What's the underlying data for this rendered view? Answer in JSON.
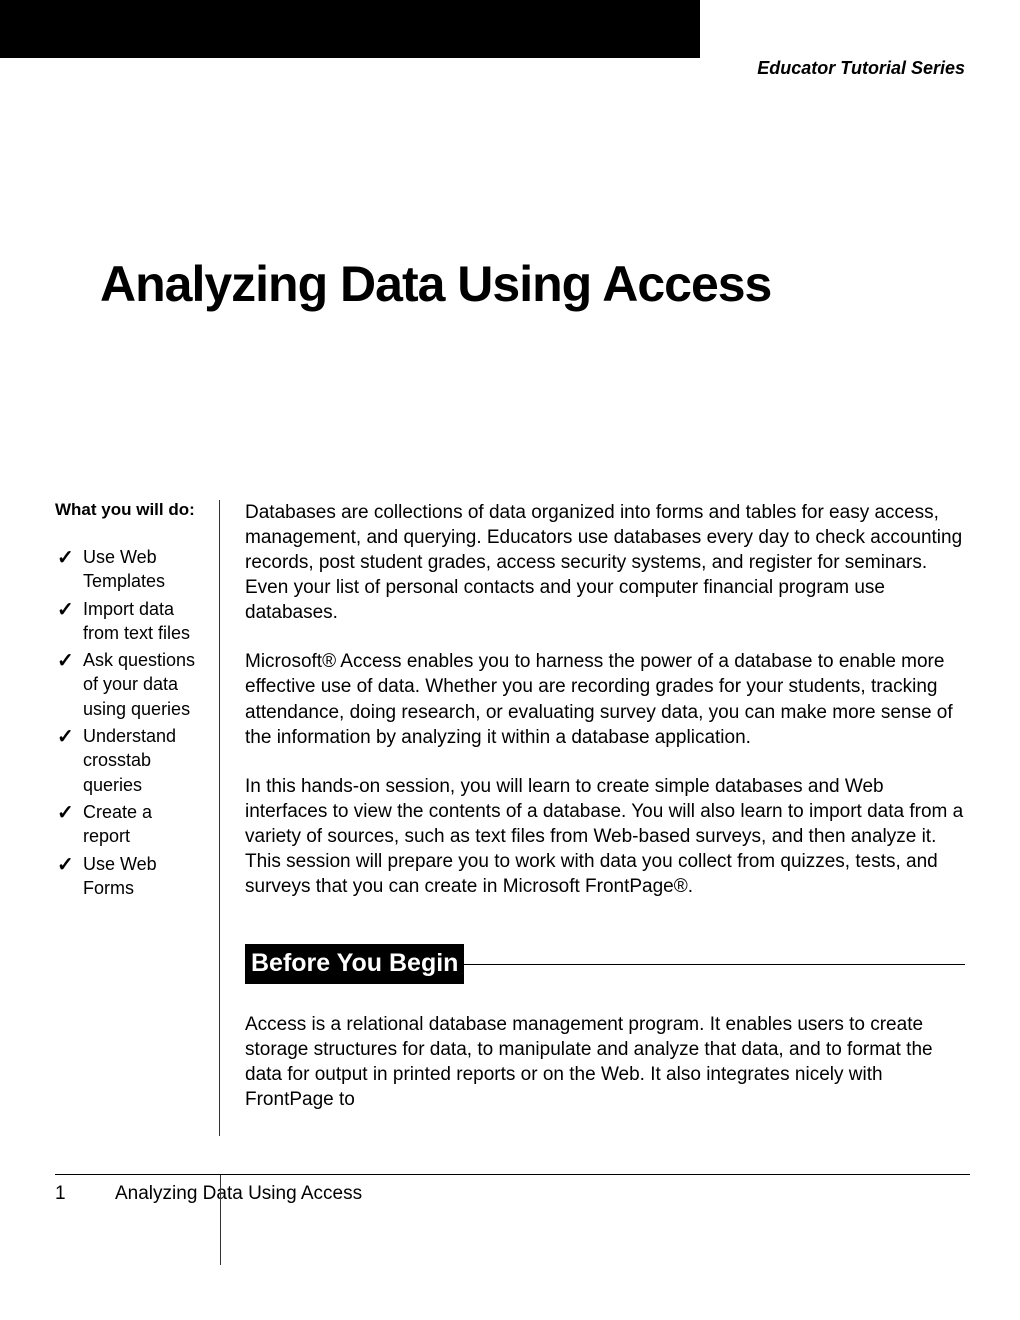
{
  "header": {
    "series_label": "Educator Tutorial Series"
  },
  "title": "Analyzing Data Using Access",
  "sidebar": {
    "heading": "What you will do:",
    "items": [
      "Use Web Templates",
      "Import data from text files",
      "Ask questions of your data using queries",
      "Understand crosstab queries",
      "Create a report",
      "Use Web Forms"
    ]
  },
  "body": {
    "para1": "Databases are collections of data organized into forms and tables for easy access, management, and querying. Educators use databases every day to check accounting records, post student grades, access security systems, and register for seminars. Even your list of personal contacts and your computer financial program use databases.",
    "para2": "Microsoft® Access enables you to harness the power of a database to enable more effective use of data. Whether you are recording grades for your students, tracking attendance, doing research, or evaluating survey data, you can make more sense of the information by analyzing it within a database application.",
    "para3": "In this hands-on session, you will learn to create simple databases and Web interfaces to view the contents of a database. You will also learn to import data from a variety of sources, such as text files from Web-based surveys, and then analyze it. This session will prepare you to work with data you collect from quizzes, tests, and surveys that you can create in Microsoft FrontPage®.",
    "section_heading": "Before You Begin",
    "para4": "Access is a relational database management program. It enables users to create storage structures for data, to manipulate and analyze that data, and to format the data for output in printed reports or on the Web. It also integrates nicely with FrontPage to"
  },
  "footer": {
    "page": "1",
    "title": "Analyzing Data Using Access"
  },
  "colors": {
    "black": "#000000",
    "white": "#ffffff"
  }
}
